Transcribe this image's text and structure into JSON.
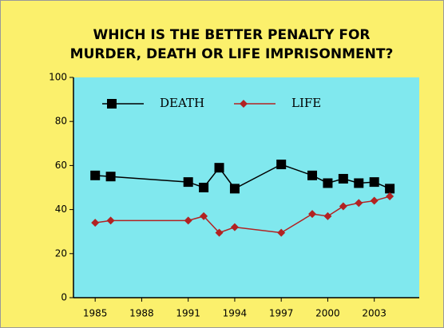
{
  "chart_data": {
    "type": "line",
    "title": [
      "WHICH IS THE BETTER PENALTY FOR",
      "MURDER, DEATH OR LIFE IMPRISONMENT?"
    ],
    "x": [
      1985,
      1986,
      1991,
      1992,
      1993,
      1994,
      1997,
      1999,
      2000,
      2001,
      2002,
      2003,
      2004
    ],
    "series": [
      {
        "name": "DEATH",
        "color": "#000000",
        "marker": "square",
        "values": [
          55.5,
          55,
          52.5,
          50,
          59,
          49.5,
          60.5,
          55.5,
          52,
          54,
          52,
          52.5,
          49.5
        ]
      },
      {
        "name": "LIFE",
        "color": "#b22222",
        "marker": "diamond",
        "values": [
          34,
          35,
          35,
          37,
          29.5,
          32,
          29.5,
          38,
          37,
          41.5,
          43,
          44,
          46
        ]
      }
    ],
    "xlim": [
      1983.6,
      2005.9
    ],
    "xticks": [
      1985,
      1988,
      1991,
      1994,
      1997,
      2000,
      2003
    ],
    "ylim": [
      0,
      100
    ],
    "yticks": [
      0,
      20,
      40,
      60,
      80,
      100
    ],
    "legend": "top"
  }
}
